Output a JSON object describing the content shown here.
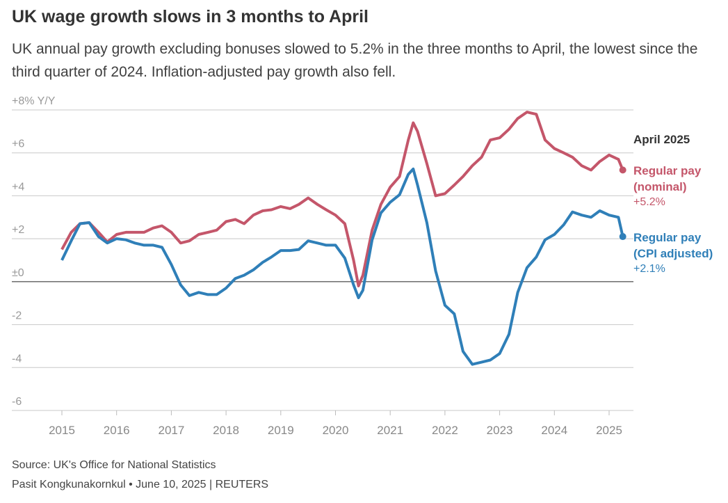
{
  "chart_data": {
    "type": "line",
    "title": "UK wage growth slows in 3 months to April",
    "subtitle": "UK annual pay growth excluding bonuses slowed to 5.2% in the three months to April, the lowest since the third quarter of 2024. Inflation-adjusted pay growth also fell.",
    "source": "Source: UK's Office for National Statistics",
    "credit": "Pasit Kongkunakornkul • June 10, 2025 | REUTERS",
    "annotation": "April 2025",
    "x": [
      2015.0,
      2015.17,
      2015.33,
      2015.5,
      2015.67,
      2015.83,
      2016.0,
      2016.17,
      2016.33,
      2016.5,
      2016.67,
      2016.83,
      2017.0,
      2017.17,
      2017.33,
      2017.5,
      2017.67,
      2017.83,
      2018.0,
      2018.17,
      2018.33,
      2018.5,
      2018.67,
      2018.83,
      2019.0,
      2019.17,
      2019.33,
      2019.5,
      2019.67,
      2019.83,
      2020.0,
      2020.17,
      2020.33,
      2020.42,
      2020.5,
      2020.67,
      2020.83,
      2021.0,
      2021.17,
      2021.33,
      2021.42,
      2021.5,
      2021.67,
      2021.83,
      2022.0,
      2022.17,
      2022.33,
      2022.5,
      2022.67,
      2022.83,
      2023.0,
      2023.17,
      2023.33,
      2023.5,
      2023.67,
      2023.83,
      2024.0,
      2024.17,
      2024.33,
      2024.5,
      2024.67,
      2024.83,
      2025.0,
      2025.17,
      2025.25
    ],
    "series": [
      {
        "name": "Regular pay (nominal)",
        "color": "#c4566a",
        "end_label": "+5.2%",
        "values": [
          1.5,
          2.3,
          2.7,
          2.75,
          2.3,
          1.85,
          2.2,
          2.3,
          2.3,
          2.3,
          2.5,
          2.6,
          2.3,
          1.8,
          1.9,
          2.2,
          2.3,
          2.4,
          2.8,
          2.9,
          2.7,
          3.1,
          3.3,
          3.35,
          3.5,
          3.4,
          3.6,
          3.9,
          3.6,
          3.35,
          3.1,
          2.7,
          1.0,
          -0.2,
          0.3,
          2.4,
          3.6,
          4.4,
          4.9,
          6.6,
          7.4,
          7.0,
          5.5,
          4.0,
          4.1,
          4.5,
          4.9,
          5.4,
          5.8,
          6.6,
          6.7,
          7.1,
          7.6,
          7.9,
          7.8,
          6.6,
          6.2,
          6.0,
          5.8,
          5.4,
          5.2,
          5.6,
          5.9,
          5.7,
          5.2
        ]
      },
      {
        "name": "Regular pay (CPI adjusted)",
        "color": "#2f7fb8",
        "end_label": "+2.1%",
        "values": [
          1.0,
          1.9,
          2.7,
          2.75,
          2.1,
          1.8,
          2.0,
          1.95,
          1.8,
          1.7,
          1.7,
          1.6,
          0.8,
          -0.15,
          -0.65,
          -0.5,
          -0.6,
          -0.6,
          -0.3,
          0.15,
          0.3,
          0.55,
          0.9,
          1.15,
          1.45,
          1.45,
          1.5,
          1.9,
          1.8,
          1.7,
          1.7,
          1.1,
          -0.15,
          -0.75,
          -0.4,
          1.95,
          3.2,
          3.7,
          4.05,
          5.0,
          5.25,
          4.5,
          2.75,
          0.5,
          -1.1,
          -1.5,
          -3.25,
          -3.85,
          -3.75,
          -3.65,
          -3.35,
          -2.45,
          -0.5,
          0.65,
          1.15,
          1.95,
          2.2,
          2.65,
          3.25,
          3.1,
          3.0,
          3.3,
          3.1,
          3.0,
          2.1
        ]
      }
    ],
    "xlim": [
      2014.1,
      2025.45
    ],
    "xticks": [
      2015,
      2016,
      2017,
      2018,
      2019,
      2020,
      2021,
      2022,
      2023,
      2024,
      2025
    ],
    "ylim": [
      -6,
      8
    ],
    "yticks": [
      {
        "value": 8,
        "label": "+8% Y/Y"
      },
      {
        "value": 6,
        "label": "+6"
      },
      {
        "value": 4,
        "label": "+4"
      },
      {
        "value": 2,
        "label": "+2"
      },
      {
        "value": 0,
        "label": "±0"
      },
      -2,
      -4,
      -6
    ],
    "grid": true
  }
}
